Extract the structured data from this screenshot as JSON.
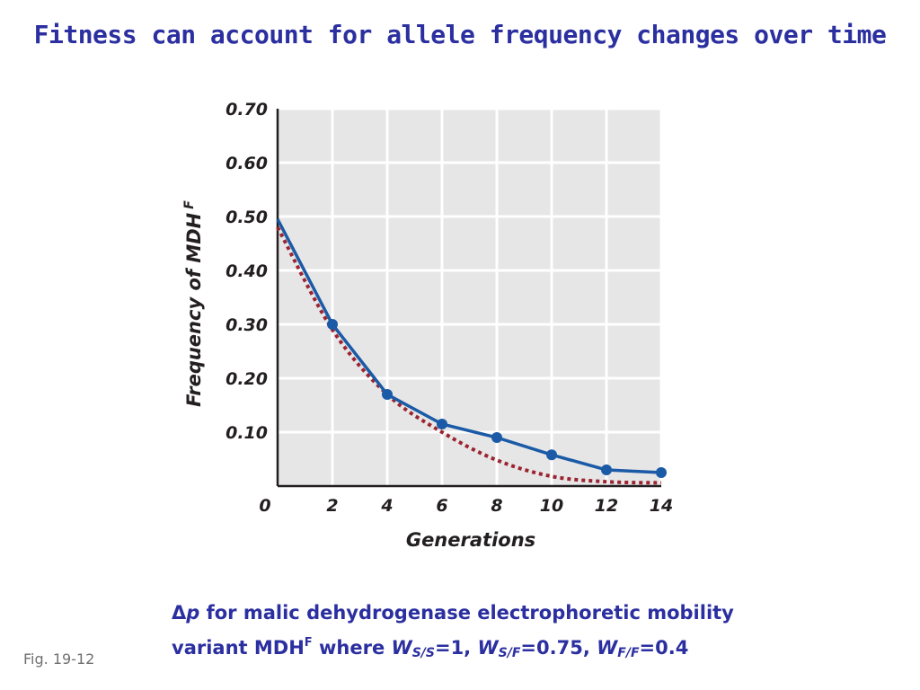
{
  "title": "Fitness can account for allele frequency changes over time",
  "fig_label": "Fig. 19-12",
  "caption": {
    "delta": "Δ",
    "p": "p",
    "line1_rest": " for malic dehydrogenase electrophoretic mobility",
    "line2_start": "variant MDH",
    "line2_sup": "F",
    "line2_where": " where ",
    "w1_w": "W",
    "w1_sub": "S/S",
    "w1_val": "=1, ",
    "w2_w": "W",
    "w2_sub": "S/F",
    "w2_val": "=0.75, ",
    "w3_w": "W",
    "w3_sub": "F/F",
    "w3_val": "=0.4"
  },
  "chart_data": {
    "type": "line",
    "xlabel": "Generations",
    "ylabel_main": "Frequency of MDH",
    "ylabel_sup": "F",
    "xlim": [
      0,
      14
    ],
    "ylim": [
      0,
      0.7
    ],
    "x_ticks": [
      "0",
      "2",
      "4",
      "6",
      "8",
      "10",
      "12",
      "14"
    ],
    "y_ticks": [
      "0.10",
      "0.20",
      "0.30",
      "0.40",
      "0.50",
      "0.60",
      "0.70"
    ],
    "grid": true,
    "series": [
      {
        "style": "solid-with-markers",
        "color": "#1a5aa6",
        "x": [
          0,
          2,
          4,
          6,
          8,
          10,
          12,
          14
        ],
        "y": [
          0.495,
          0.3,
          0.17,
          0.115,
          0.09,
          0.058,
          0.03,
          0.025
        ]
      },
      {
        "style": "dotted",
        "color": "#9b2430",
        "x": [
          0,
          2,
          4,
          6,
          8,
          10,
          12,
          14
        ],
        "y": [
          0.48,
          0.29,
          0.17,
          0.1,
          0.048,
          0.018,
          0.008,
          0.006
        ]
      }
    ],
    "colors": {
      "plot_background": "#e6e6e7",
      "grid": "#ffffff",
      "axis": "#231f20"
    }
  }
}
